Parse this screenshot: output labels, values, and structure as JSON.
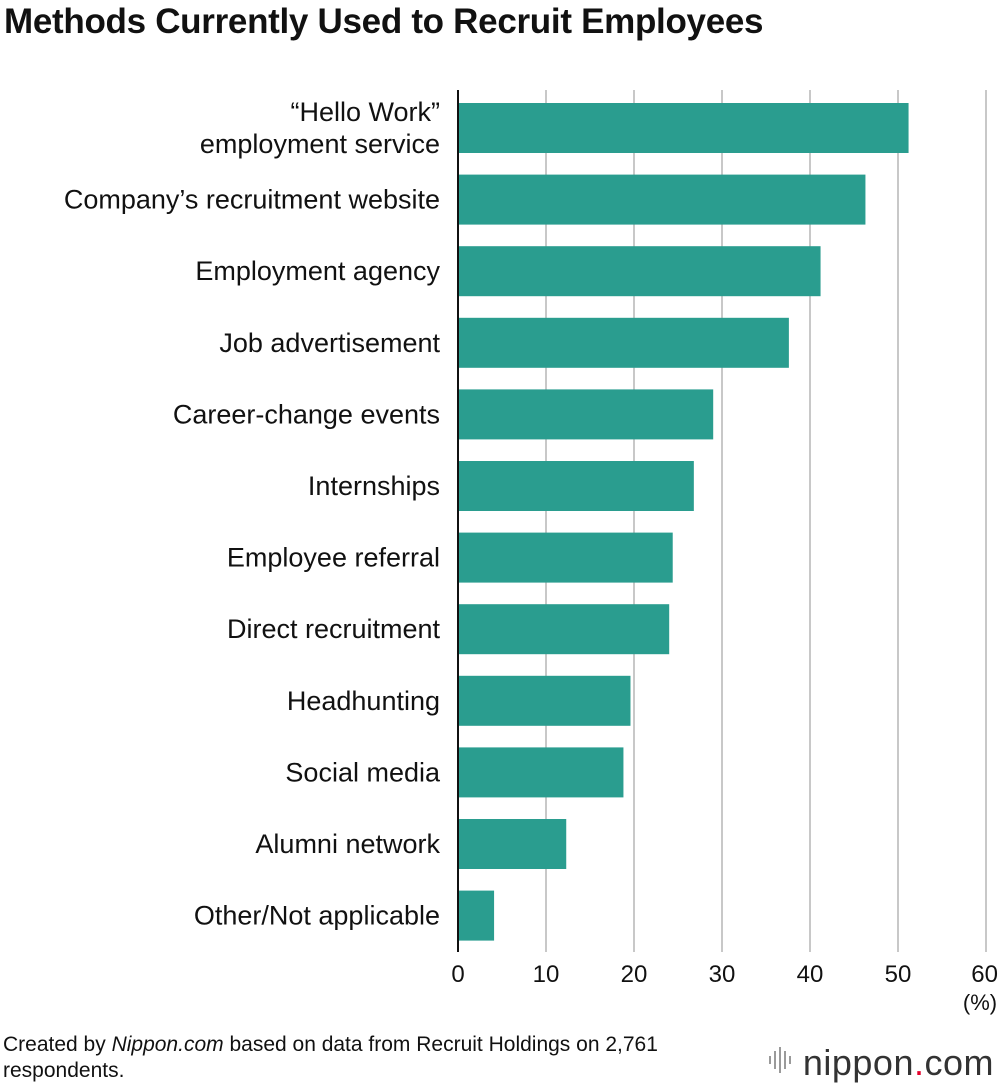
{
  "chart_data": {
    "type": "bar",
    "orientation": "horizontal",
    "title": "Methods Currently Used to Recruit Employees",
    "categories": [
      "“Hello Work”\nemployment service",
      "Company’s recruitment website",
      "Employment agency",
      "Job advertisement",
      "Career-change events",
      "Internships",
      "Employee referral",
      "Direct recruitment",
      "Headhunting",
      "Social media",
      "Alumni network",
      "Other/Not applicable"
    ],
    "values": [
      51.2,
      46.3,
      41.2,
      37.6,
      29.0,
      26.8,
      24.4,
      24.0,
      19.6,
      18.8,
      12.3,
      4.1
    ],
    "xlim": [
      0,
      60
    ],
    "xticks": [
      "0",
      "10",
      "20",
      "30",
      "40",
      "50",
      "60"
    ],
    "unit_label": "(%)",
    "xlabel": "",
    "ylabel": "",
    "grid": "vertical",
    "bar_color": "#2a9d8f"
  },
  "footer": {
    "source_prefix": "Created by ",
    "source_site": "Nippon.com",
    "source_suffix": " based on data from Recruit Holdings on 2,761 respondents.",
    "logo_main": "nippon",
    "logo_dot": ".",
    "logo_tld": "com"
  }
}
